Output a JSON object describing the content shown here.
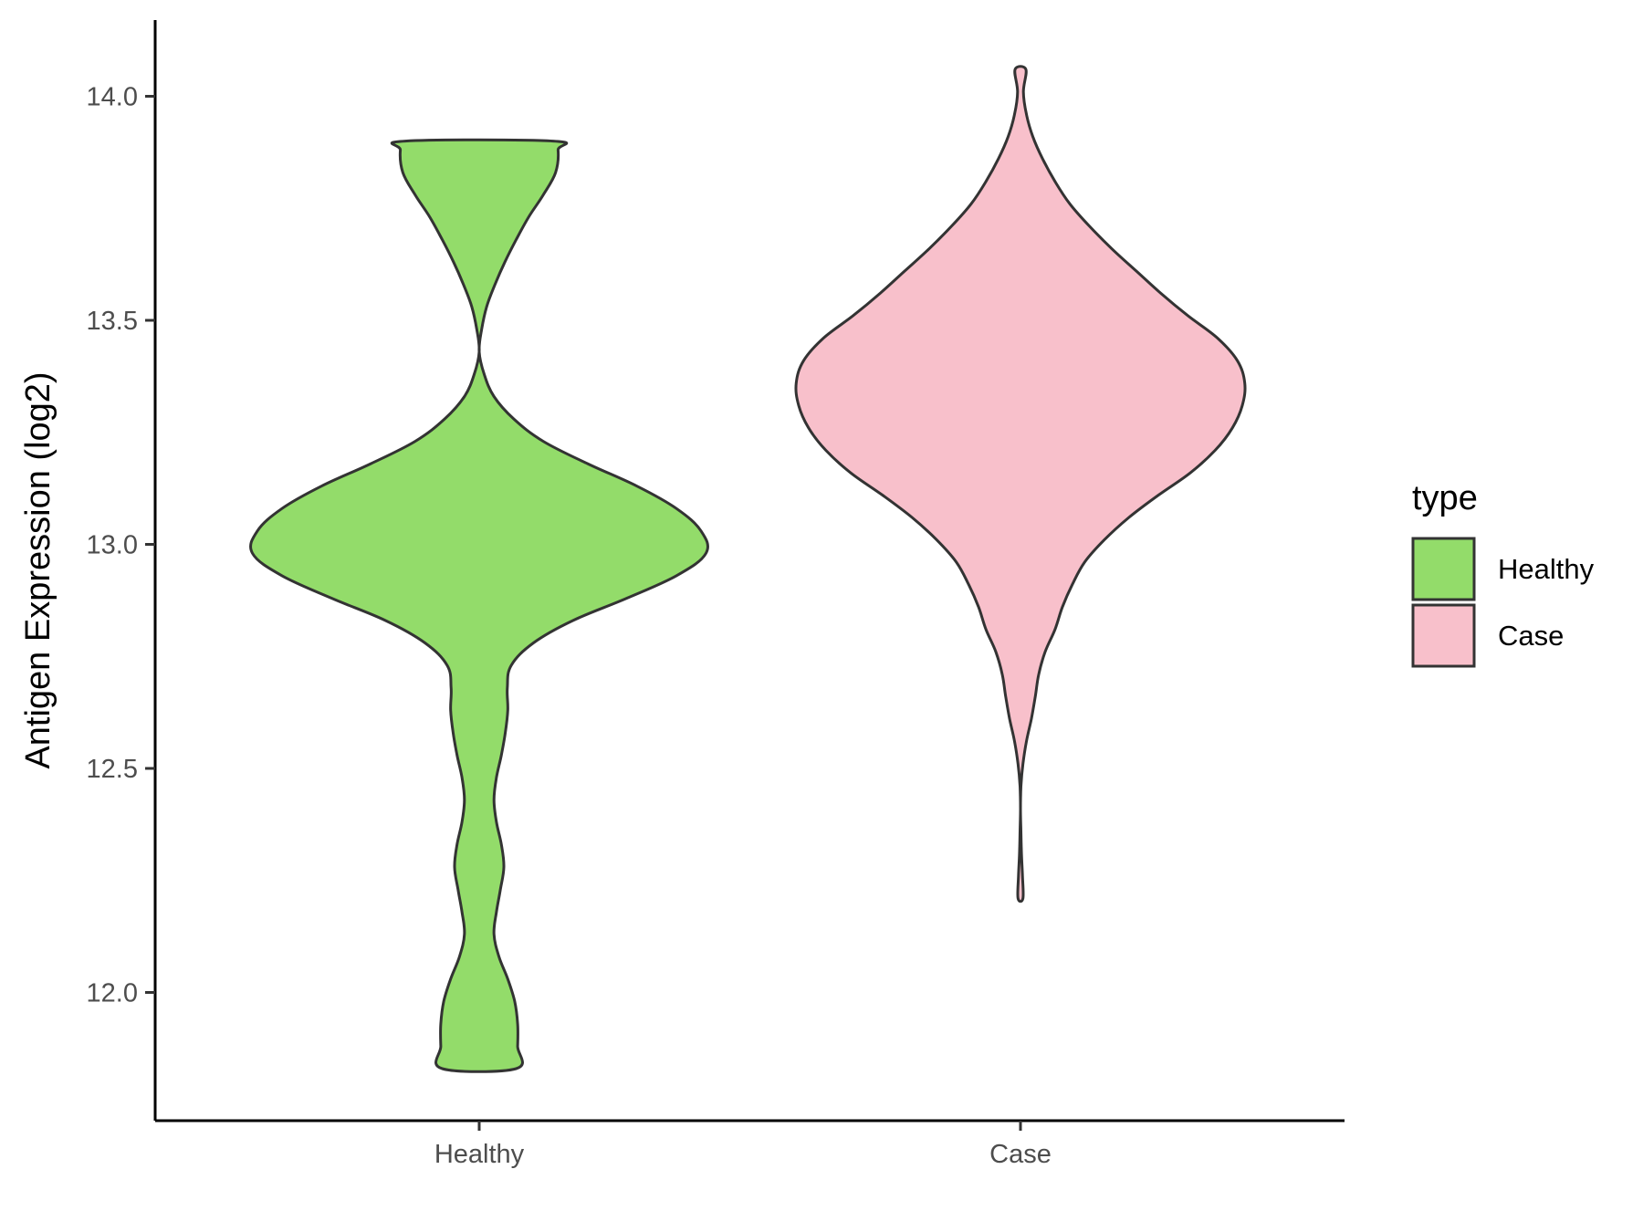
{
  "chart_data": {
    "type": "violin",
    "title": "",
    "xlabel": "",
    "ylabel": "Antigen Expression (log2)",
    "ylim": [
      11.72,
      14.17
    ],
    "yticks": [
      12.0,
      12.5,
      13.0,
      13.5,
      14.0
    ],
    "ytick_labels": [
      "12.0",
      "12.5",
      "13.0",
      "13.5",
      "14.0"
    ],
    "categories": [
      "Healthy",
      "Case"
    ],
    "legend": {
      "title": "type",
      "position": "right",
      "entries": [
        "Healthy",
        "Case"
      ]
    },
    "grid": false,
    "series": [
      {
        "name": "Healthy",
        "color": "#93DC6A",
        "y_min": 11.83,
        "y_max": 13.9,
        "profile": [
          [
            11.83,
            0.075
          ],
          [
            11.88,
            0.078
          ],
          [
            11.93,
            0.078
          ],
          [
            11.98,
            0.072
          ],
          [
            12.03,
            0.058
          ],
          [
            12.08,
            0.04
          ],
          [
            12.13,
            0.03
          ],
          [
            12.18,
            0.035
          ],
          [
            12.23,
            0.043
          ],
          [
            12.28,
            0.05
          ],
          [
            12.33,
            0.045
          ],
          [
            12.38,
            0.035
          ],
          [
            12.43,
            0.03
          ],
          [
            12.48,
            0.035
          ],
          [
            12.53,
            0.045
          ],
          [
            12.58,
            0.053
          ],
          [
            12.63,
            0.058
          ],
          [
            12.68,
            0.057
          ],
          [
            12.73,
            0.065
          ],
          [
            12.78,
            0.11
          ],
          [
            12.83,
            0.19
          ],
          [
            12.88,
            0.3
          ],
          [
            12.93,
            0.4
          ],
          [
            12.98,
            0.46
          ],
          [
            13.03,
            0.45
          ],
          [
            13.08,
            0.4
          ],
          [
            13.13,
            0.32
          ],
          [
            13.18,
            0.22
          ],
          [
            13.23,
            0.13
          ],
          [
            13.28,
            0.07
          ],
          [
            13.33,
            0.03
          ],
          [
            13.38,
            0.01
          ],
          [
            13.43,
            0.0
          ],
          [
            13.48,
            0.005
          ],
          [
            13.53,
            0.015
          ],
          [
            13.58,
            0.032
          ],
          [
            13.63,
            0.052
          ],
          [
            13.68,
            0.075
          ],
          [
            13.73,
            0.1
          ],
          [
            13.78,
            0.13
          ],
          [
            13.83,
            0.155
          ],
          [
            13.88,
            0.16
          ],
          [
            13.9,
            0.15
          ]
        ]
      },
      {
        "name": "Case",
        "color": "#F8C0CB",
        "y_min": 12.21,
        "y_max": 14.06,
        "profile": [
          [
            12.21,
            0.005
          ],
          [
            12.26,
            0.004
          ],
          [
            12.31,
            0.002
          ],
          [
            12.36,
            0.001
          ],
          [
            12.41,
            0.0
          ],
          [
            12.46,
            0.001
          ],
          [
            12.51,
            0.005
          ],
          [
            12.56,
            0.012
          ],
          [
            12.61,
            0.022
          ],
          [
            12.66,
            0.03
          ],
          [
            12.71,
            0.037
          ],
          [
            12.76,
            0.05
          ],
          [
            12.81,
            0.07
          ],
          [
            12.86,
            0.085
          ],
          [
            12.91,
            0.105
          ],
          [
            12.96,
            0.13
          ],
          [
            13.01,
            0.17
          ],
          [
            13.06,
            0.22
          ],
          [
            13.11,
            0.28
          ],
          [
            13.16,
            0.345
          ],
          [
            13.21,
            0.395
          ],
          [
            13.26,
            0.43
          ],
          [
            13.31,
            0.45
          ],
          [
            13.36,
            0.455
          ],
          [
            13.41,
            0.44
          ],
          [
            13.46,
            0.4
          ],
          [
            13.51,
            0.34
          ],
          [
            13.56,
            0.285
          ],
          [
            13.61,
            0.235
          ],
          [
            13.66,
            0.185
          ],
          [
            13.71,
            0.14
          ],
          [
            13.76,
            0.1
          ],
          [
            13.81,
            0.07
          ],
          [
            13.86,
            0.045
          ],
          [
            13.91,
            0.025
          ],
          [
            13.96,
            0.012
          ],
          [
            14.01,
            0.006
          ],
          [
            14.06,
            0.011
          ]
        ]
      }
    ]
  }
}
